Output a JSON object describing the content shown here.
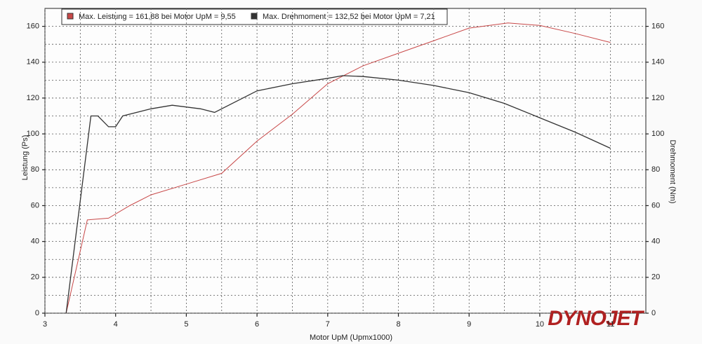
{
  "chart_data": {
    "type": "line",
    "xlabel": "Motor UpM (Upmx1000)",
    "ylabel": "Leistung (Ps)",
    "y2label": "Drehmoment (Nm)",
    "logo": "DYNOJET",
    "xlim": [
      3,
      11.5
    ],
    "xticks": [
      3,
      4,
      5,
      6,
      7,
      8,
      9,
      10,
      11
    ],
    "ylim": [
      0,
      170
    ],
    "yticks": [
      0,
      20,
      40,
      60,
      80,
      100,
      120,
      140,
      160
    ],
    "y2lim": [
      0,
      170
    ],
    "y2ticks": [
      0,
      20,
      40,
      60,
      80,
      100,
      120,
      140,
      160
    ],
    "grid": true,
    "series": [
      {
        "name": "Max. Leistung = 161,88 bei Motor UpM = 9,55",
        "color": "#c84848",
        "axis": "y",
        "x": [
          3.3,
          3.6,
          3.9,
          4.2,
          4.5,
          5,
          5.5,
          6,
          6.5,
          7,
          7.5,
          8,
          8.5,
          9,
          9.55,
          10,
          10.5,
          11
        ],
        "values": [
          0,
          52,
          53,
          60,
          66,
          72,
          78,
          96,
          111,
          128,
          138,
          145,
          152,
          159,
          161.9,
          160.5,
          156,
          151
        ]
      },
      {
        "name": "Max. Drehmoment = 132,52 bei Motor UpM = 7,21",
        "color": "#333333",
        "axis": "y2",
        "x": [
          3.3,
          3.65,
          3.75,
          3.9,
          4.0,
          4.1,
          4.5,
          4.8,
          5.2,
          5.4,
          5.7,
          6,
          6.5,
          7,
          7.21,
          7.5,
          8,
          8.5,
          9,
          9.5,
          10,
          10.5,
          11
        ],
        "values": [
          0,
          110,
          110,
          104,
          104,
          110,
          114,
          116,
          114,
          112,
          118,
          124,
          128,
          131,
          132.5,
          132,
          130,
          127,
          123,
          117,
          109,
          101,
          92
        ]
      }
    ]
  }
}
